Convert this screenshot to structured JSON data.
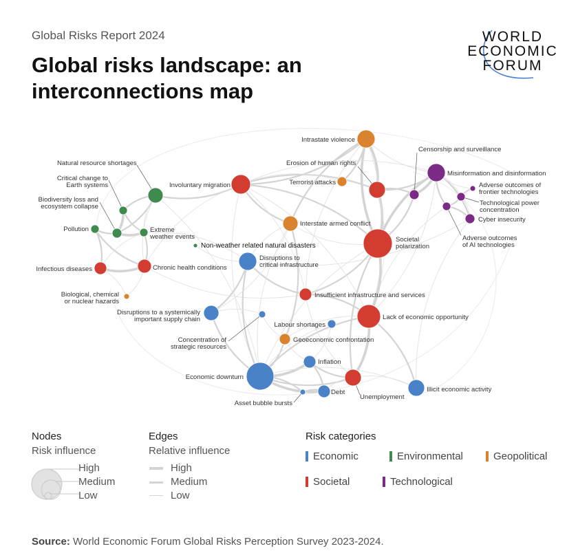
{
  "header": {
    "report": "Global Risks Report 2024",
    "title_line1": "Global risks landscape: an",
    "title_line2": "interconnections map"
  },
  "logo": {
    "lines": [
      "WORLD",
      "ECONOMIC",
      "FORUM"
    ],
    "arc_color": "#4a7fd6"
  },
  "colors": {
    "Economic": "#4a82c8",
    "Environmental": "#3f8a4f",
    "Geopolitical": "#d9832e",
    "Societal": "#d33c30",
    "Technological": "#7b2a86",
    "edge": "#d4d4d4"
  },
  "nodes": [
    {
      "label": [
        "Intrastate violence"
      ],
      "category": "Geopolitical",
      "influence": 13
    },
    {
      "label": [
        "Censorship and surveillance"
      ],
      "category": "Technological",
      "influence": 7
    },
    {
      "label": [
        "Misinformation and disinformation"
      ],
      "category": "Technological",
      "influence": 13
    },
    {
      "label": [
        "Adverse outcomes of",
        "frontier technologies"
      ],
      "category": "Technological",
      "influence": 4
    },
    {
      "label": [
        "Technological power",
        "concentration"
      ],
      "category": "Technological",
      "influence": 6
    },
    {
      "label": [
        "Cyber insecurity"
      ],
      "category": "Technological",
      "influence": 7
    },
    {
      "label": [
        "Adverse outcomes",
        "of AI technologies"
      ],
      "category": "Technological",
      "influence": 6
    },
    {
      "label": [
        "Erosion of human rights"
      ],
      "category": "Societal",
      "influence": 12
    },
    {
      "label": [
        "Terrorist attacks"
      ],
      "category": "Geopolitical",
      "influence": 7
    },
    {
      "label": [
        "Involuntary migration"
      ],
      "category": "Societal",
      "influence": 14
    },
    {
      "label": [
        "Natural resource shortages"
      ],
      "category": "Environmental",
      "influence": 11
    },
    {
      "label": [
        "Critical change to",
        "Earth systems"
      ],
      "category": "Environmental",
      "influence": 6
    },
    {
      "label": [
        "Biodiversity loss and",
        "ecosystem collapse"
      ],
      "category": "Environmental",
      "influence": 7
    },
    {
      "label": [
        "Pollution"
      ],
      "category": "Environmental",
      "influence": 6
    },
    {
      "label": [
        "Extreme",
        "weather events"
      ],
      "category": "Environmental",
      "influence": 6
    },
    {
      "label": [
        "Non-weather related natural disasters"
      ],
      "category": "Environmental",
      "influence": 3
    },
    {
      "label": [
        "Interstate armed conflict"
      ],
      "category": "Geopolitical",
      "influence": 11
    },
    {
      "label": [
        "Societal",
        "polarization"
      ],
      "category": "Societal",
      "influence": 21
    },
    {
      "label": [
        "Infectious diseases"
      ],
      "category": "Societal",
      "influence": 9
    },
    {
      "label": [
        "Chronic health conditions"
      ],
      "category": "Societal",
      "influence": 10
    },
    {
      "label": [
        "Disruptions to",
        "critical infrastructure"
      ],
      "category": "Economic",
      "influence": 13
    },
    {
      "label": [
        "Biological, chemical",
        "or nuclear hazards"
      ],
      "category": "Geopolitical",
      "influence": 4
    },
    {
      "label": [
        "Insufficient infrastructure and services"
      ],
      "category": "Societal",
      "influence": 9
    },
    {
      "label": [
        "Disruptions to a systemically",
        "important supply chain"
      ],
      "category": "Economic",
      "influence": 11
    },
    {
      "label": [
        "Concentration of",
        "strategic resources"
      ],
      "category": "Economic",
      "influence": 5
    },
    {
      "label": [
        "Labour shortages"
      ],
      "category": "Economic",
      "influence": 6
    },
    {
      "label": [
        "Lack of economic opportunity"
      ],
      "category": "Societal",
      "influence": 17
    },
    {
      "label": [
        "Geoeconomic confrontation"
      ],
      "category": "Geopolitical",
      "influence": 8
    },
    {
      "label": [
        "Inflation"
      ],
      "category": "Economic",
      "influence": 9
    },
    {
      "label": [
        "Economic downturn"
      ],
      "category": "Economic",
      "influence": 20
    },
    {
      "label": [
        "Unemployment"
      ],
      "category": "Societal",
      "influence": 12
    },
    {
      "label": [
        "Asset bubble bursts"
      ],
      "category": "Economic",
      "influence": 4
    },
    {
      "label": [
        "Debt"
      ],
      "category": "Economic",
      "influence": 9
    },
    {
      "label": [
        "Illicit economic activity"
      ],
      "category": "Economic",
      "influence": 12
    }
  ],
  "edges": [
    [
      0,
      7,
      3
    ],
    [
      0,
      17,
      3
    ],
    [
      0,
      8,
      2
    ],
    [
      0,
      16,
      2
    ],
    [
      0,
      9,
      2
    ],
    [
      0,
      2,
      1
    ],
    [
      0,
      26,
      1
    ],
    [
      0,
      22,
      1
    ],
    [
      7,
      17,
      3
    ],
    [
      7,
      9,
      2
    ],
    [
      7,
      1,
      2
    ],
    [
      7,
      2,
      2
    ],
    [
      7,
      26,
      1
    ],
    [
      1,
      2,
      3
    ],
    [
      1,
      17,
      2
    ],
    [
      2,
      17,
      3
    ],
    [
      2,
      5,
      2
    ],
    [
      2,
      6,
      2
    ],
    [
      2,
      4,
      1
    ],
    [
      2,
      3,
      1
    ],
    [
      6,
      5,
      2
    ],
    [
      6,
      4,
      2
    ],
    [
      4,
      3,
      2
    ],
    [
      5,
      4,
      1
    ],
    [
      5,
      20,
      1
    ],
    [
      6,
      26,
      1
    ],
    [
      2,
      26,
      1
    ],
    [
      2,
      9,
      1
    ],
    [
      17,
      26,
      3
    ],
    [
      17,
      9,
      2
    ],
    [
      17,
      22,
      2
    ],
    [
      17,
      30,
      2
    ],
    [
      17,
      16,
      1
    ],
    [
      17,
      29,
      1
    ],
    [
      9,
      10,
      2
    ],
    [
      9,
      16,
      2
    ],
    [
      9,
      26,
      1
    ],
    [
      9,
      19,
      1
    ],
    [
      9,
      22,
      1
    ],
    [
      9,
      29,
      1
    ],
    [
      9,
      8,
      1
    ],
    [
      10,
      11,
      2
    ],
    [
      10,
      12,
      2
    ],
    [
      10,
      14,
      1
    ],
    [
      10,
      29,
      1
    ],
    [
      10,
      19,
      1
    ],
    [
      11,
      12,
      3
    ],
    [
      11,
      14,
      2
    ],
    [
      12,
      13,
      2
    ],
    [
      12,
      14,
      3
    ],
    [
      13,
      18,
      2
    ],
    [
      13,
      19,
      2
    ],
    [
      14,
      19,
      2
    ],
    [
      14,
      18,
      1
    ],
    [
      14,
      20,
      1
    ],
    [
      18,
      19,
      3
    ],
    [
      18,
      21,
      1
    ],
    [
      19,
      22,
      1
    ],
    [
      19,
      21,
      1
    ],
    [
      20,
      22,
      2
    ],
    [
      20,
      23,
      2
    ],
    [
      20,
      29,
      2
    ],
    [
      20,
      16,
      1
    ],
    [
      15,
      20,
      1
    ],
    [
      16,
      27,
      2
    ],
    [
      16,
      29,
      1
    ],
    [
      16,
      23,
      1
    ],
    [
      23,
      29,
      2
    ],
    [
      23,
      24,
      1
    ],
    [
      24,
      27,
      1
    ],
    [
      27,
      29,
      2
    ],
    [
      27,
      28,
      1
    ],
    [
      25,
      28,
      1
    ],
    [
      25,
      29,
      1
    ],
    [
      26,
      30,
      3
    ],
    [
      26,
      29,
      2
    ],
    [
      26,
      33,
      2
    ],
    [
      26,
      22,
      2
    ],
    [
      28,
      29,
      3
    ],
    [
      28,
      30,
      2
    ],
    [
      28,
      32,
      2
    ],
    [
      29,
      32,
      3
    ],
    [
      29,
      31,
      2
    ],
    [
      29,
      30,
      2
    ],
    [
      31,
      32,
      2
    ],
    [
      30,
      32,
      1
    ],
    [
      30,
      33,
      1
    ],
    [
      33,
      29,
      1
    ],
    [
      33,
      5,
      1
    ],
    [
      22,
      30,
      1
    ],
    [
      27,
      26,
      1
    ]
  ],
  "legend": {
    "nodes_title": "Nodes",
    "nodes_sub": "Risk influence",
    "nodes_levels": [
      "High",
      "Medium",
      "Low"
    ],
    "edges_title": "Edges",
    "edges_sub": "Relative influence",
    "edges_levels": [
      "High",
      "Medium",
      "Low"
    ],
    "categories_title": "Risk categories",
    "categories": [
      "Economic",
      "Environmental",
      "Geopolitical",
      "Societal",
      "Technological"
    ]
  },
  "source": {
    "label": "Source:",
    "text": " World Economic Forum Global Risks Perception Survey 2023-2024."
  }
}
